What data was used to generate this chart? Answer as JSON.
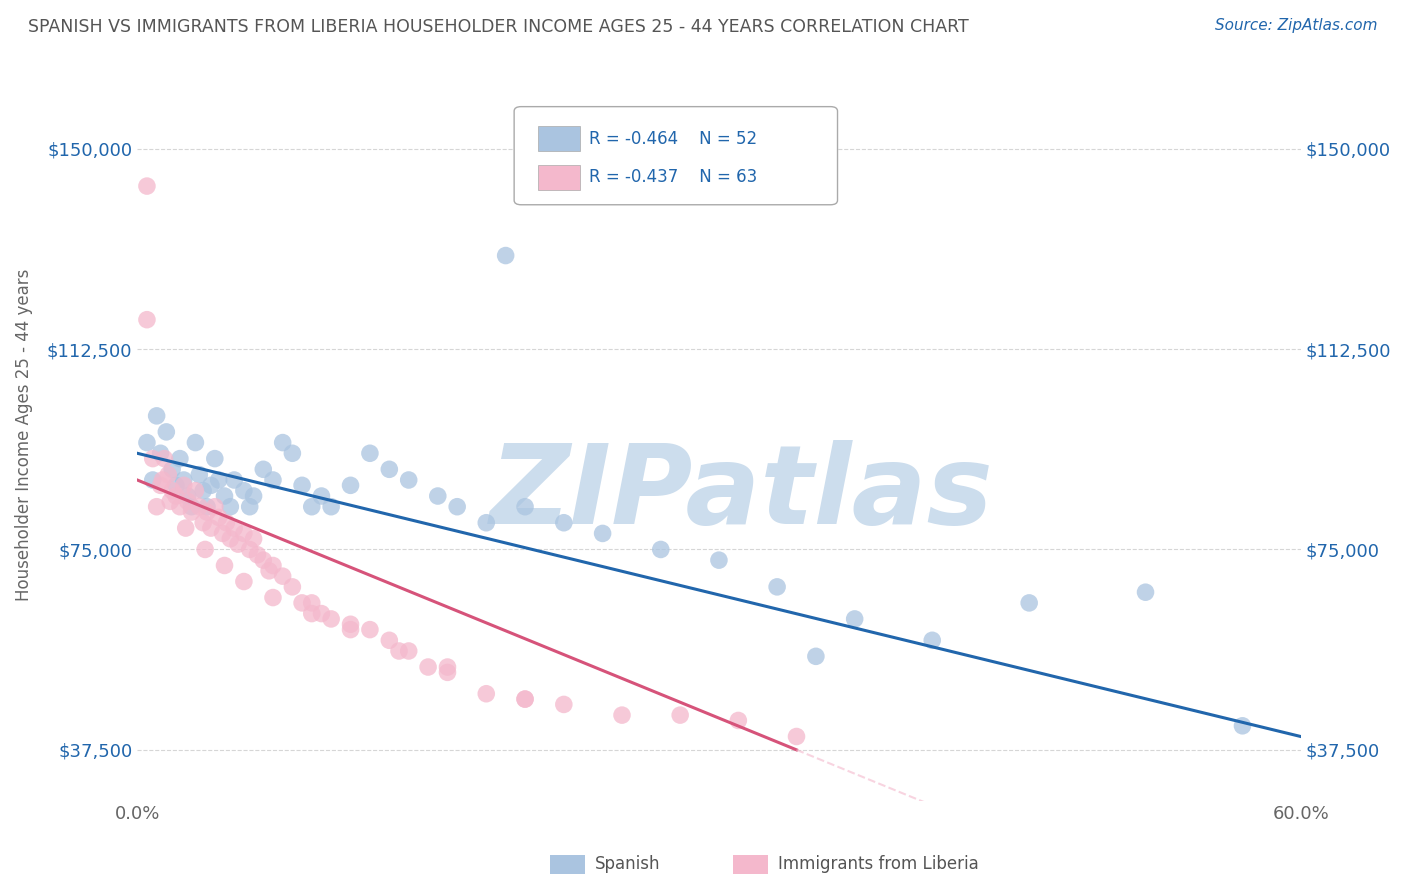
{
  "title": "SPANISH VS IMMIGRANTS FROM LIBERIA HOUSEHOLDER INCOME AGES 25 - 44 YEARS CORRELATION CHART",
  "source_text": "Source: ZipAtlas.com",
  "ylabel": "Householder Income Ages 25 - 44 years",
  "xlim": [
    0.0,
    0.6
  ],
  "ylim": [
    28000,
    165000
  ],
  "xticks": [
    0.0,
    0.1,
    0.2,
    0.3,
    0.4,
    0.5,
    0.6
  ],
  "xticklabels": [
    "0.0%",
    "",
    "",
    "",
    "",
    "",
    "60.0%"
  ],
  "yticks": [
    37500,
    75000,
    112500,
    150000
  ],
  "yticklabels": [
    "$37,500",
    "$75,000",
    "$112,500",
    "$150,000"
  ],
  "legend_r1": "R = -0.464",
  "legend_n1": "N = 52",
  "legend_r2": "R = -0.437",
  "legend_n2": "N = 63",
  "color_spanish": "#aac4e0",
  "color_liberia": "#f4b8cc",
  "color_line_spanish": "#2166ac",
  "color_line_liberia": "#d6537a",
  "background_color": "#ffffff",
  "watermark_text": "ZIPatlas",
  "watermark_color": "#ccdded",
  "spanish_x": [
    0.005,
    0.008,
    0.01,
    0.012,
    0.015,
    0.018,
    0.02,
    0.022,
    0.024,
    0.026,
    0.028,
    0.03,
    0.032,
    0.034,
    0.036,
    0.038,
    0.04,
    0.042,
    0.045,
    0.048,
    0.05,
    0.055,
    0.058,
    0.06,
    0.065,
    0.07,
    0.075,
    0.08,
    0.085,
    0.09,
    0.095,
    0.1,
    0.11,
    0.12,
    0.13,
    0.14,
    0.155,
    0.165,
    0.18,
    0.2,
    0.22,
    0.24,
    0.27,
    0.3,
    0.33,
    0.37,
    0.41,
    0.46,
    0.52,
    0.57,
    0.19,
    0.35
  ],
  "spanish_y": [
    95000,
    88000,
    100000,
    93000,
    97000,
    90000,
    87000,
    92000,
    88000,
    85000,
    83000,
    95000,
    89000,
    86000,
    83000,
    87000,
    92000,
    88000,
    85000,
    83000,
    88000,
    86000,
    83000,
    85000,
    90000,
    88000,
    95000,
    93000,
    87000,
    83000,
    85000,
    83000,
    87000,
    93000,
    90000,
    88000,
    85000,
    83000,
    80000,
    83000,
    80000,
    78000,
    75000,
    73000,
    68000,
    62000,
    58000,
    65000,
    67000,
    42000,
    130000,
    55000
  ],
  "liberia_x": [
    0.005,
    0.005,
    0.008,
    0.01,
    0.012,
    0.014,
    0.016,
    0.018,
    0.02,
    0.022,
    0.024,
    0.026,
    0.028,
    0.03,
    0.032,
    0.034,
    0.036,
    0.038,
    0.04,
    0.042,
    0.044,
    0.046,
    0.048,
    0.05,
    0.052,
    0.055,
    0.058,
    0.06,
    0.062,
    0.065,
    0.068,
    0.07,
    0.075,
    0.08,
    0.085,
    0.09,
    0.095,
    0.1,
    0.11,
    0.12,
    0.13,
    0.14,
    0.15,
    0.16,
    0.18,
    0.2,
    0.22,
    0.25,
    0.28,
    0.31,
    0.34,
    0.013,
    0.017,
    0.025,
    0.035,
    0.045,
    0.055,
    0.07,
    0.09,
    0.11,
    0.135,
    0.16,
    0.2
  ],
  "liberia_y": [
    143000,
    118000,
    92000,
    83000,
    87000,
    92000,
    89000,
    86000,
    85000,
    83000,
    87000,
    84000,
    82000,
    86000,
    83000,
    80000,
    82000,
    79000,
    83000,
    81000,
    78000,
    80000,
    77000,
    79000,
    76000,
    78000,
    75000,
    77000,
    74000,
    73000,
    71000,
    72000,
    70000,
    68000,
    65000,
    65000,
    63000,
    62000,
    61000,
    60000,
    58000,
    56000,
    53000,
    52000,
    48000,
    47000,
    46000,
    44000,
    44000,
    43000,
    40000,
    88000,
    84000,
    79000,
    75000,
    72000,
    69000,
    66000,
    63000,
    60000,
    56000,
    53000,
    47000
  ],
  "line_spanish_x0": 0.0,
  "line_spanish_x1": 0.6,
  "line_spanish_y0": 93000,
  "line_spanish_y1": 40000,
  "line_liberia_x0": 0.0,
  "line_liberia_x1": 0.34,
  "line_liberia_y0": 88000,
  "line_liberia_y1": 37500,
  "line_liberia_dash_x0": 0.34,
  "line_liberia_dash_x1": 0.6
}
